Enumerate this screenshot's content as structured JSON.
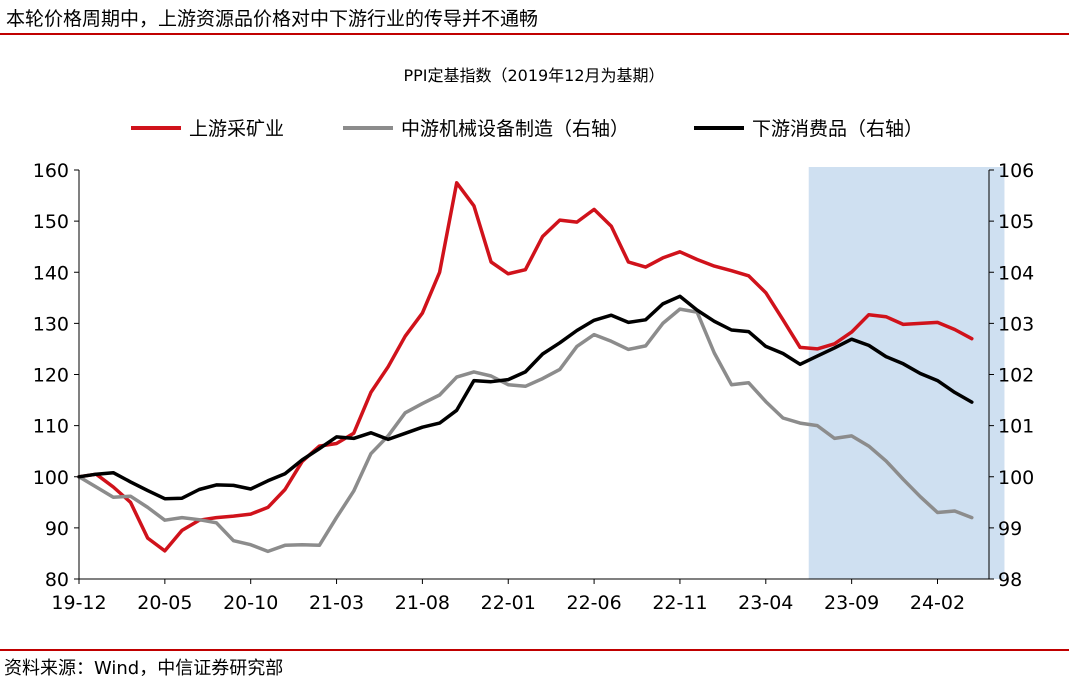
{
  "header": {
    "title": "本轮价格周期中，上游资源品价格对中下游行业的传导并不通畅"
  },
  "footer": {
    "source": "资料来源：Wind，中信证券研究部"
  },
  "colors": {
    "upstream": "#d0121b",
    "midstream": "#8c8c8c",
    "downstream": "#000000",
    "shade": "#cfe0f1",
    "rule": "#c00000"
  },
  "chart_data": {
    "type": "line",
    "title": "PPI定基指数（2019年12月为基期）",
    "legend_position": "top",
    "x_labels": [
      "19-12",
      "20-05",
      "20-10",
      "21-03",
      "21-08",
      "22-01",
      "22-06",
      "22-11",
      "23-04",
      "23-09",
      "24-02"
    ],
    "x_range": [
      0,
      53
    ],
    "ylim_left": [
      80,
      160
    ],
    "yticks_left": [
      "80",
      "90",
      "100",
      "110",
      "120",
      "130",
      "140",
      "150",
      "160"
    ],
    "ylim_right": [
      98,
      106
    ],
    "yticks_right": [
      "98",
      "99",
      "100",
      "101",
      "102",
      "103",
      "104",
      "105",
      "106"
    ],
    "shaded_region": [
      42.5,
      53.9
    ],
    "series": [
      {
        "name": "上游采矿业",
        "axis": "left",
        "color": "#d0121b",
        "values": [
          100,
          100.5,
          98,
          95,
          88,
          85.5,
          89.5,
          91.5,
          92,
          92.3,
          92.7,
          94,
          97.5,
          103,
          106,
          106.5,
          108.5,
          116.5,
          121.5,
          127.5,
          132,
          140,
          157.5,
          153,
          142,
          139.7,
          140.5,
          147,
          150.2,
          149.8,
          152.3,
          149,
          142,
          141,
          142.8,
          144,
          142.5,
          141.2,
          140.3,
          139.3,
          136,
          130.7,
          125.3,
          125,
          126,
          128.3,
          131.7,
          131.3,
          129.8,
          130,
          130.2,
          128.8,
          127
        ]
      },
      {
        "name": "中游机械设备制造（右轴）",
        "axis": "right",
        "color": "#8c8c8c",
        "values": [
          100,
          99.8,
          99.6,
          99.62,
          99.4,
          99.15,
          99.2,
          99.16,
          99.1,
          98.75,
          98.67,
          98.54,
          98.66,
          98.67,
          98.66,
          99.2,
          99.72,
          100.45,
          100.8,
          101.25,
          101.43,
          101.6,
          101.95,
          102.05,
          101.97,
          101.8,
          101.77,
          101.92,
          102.1,
          102.55,
          102.78,
          102.65,
          102.49,
          102.56,
          103,
          103.28,
          103.22,
          102.42,
          101.8,
          101.84,
          101.47,
          101.15,
          101.05,
          101.0,
          100.75,
          100.8,
          100.6,
          100.31,
          99.95,
          99.61,
          99.3,
          99.33,
          99.2
        ]
      },
      {
        "name": "下游消费品（右轴）",
        "axis": "right",
        "color": "#000000",
        "values": [
          100,
          100.05,
          100.08,
          99.9,
          99.73,
          99.57,
          99.58,
          99.75,
          99.84,
          99.83,
          99.76,
          99.92,
          100.06,
          100.33,
          100.55,
          100.78,
          100.75,
          100.86,
          100.73,
          100.85,
          100.97,
          101.05,
          101.3,
          101.88,
          101.86,
          101.9,
          102.05,
          102.4,
          102.62,
          102.86,
          103.06,
          103.16,
          103.02,
          103.07,
          103.38,
          103.53,
          103.26,
          103.04,
          102.87,
          102.84,
          102.55,
          102.41,
          102.2,
          102.36,
          102.52,
          102.69,
          102.57,
          102.35,
          102.21,
          102.02,
          101.88,
          101.65,
          101.46
        ]
      }
    ]
  }
}
